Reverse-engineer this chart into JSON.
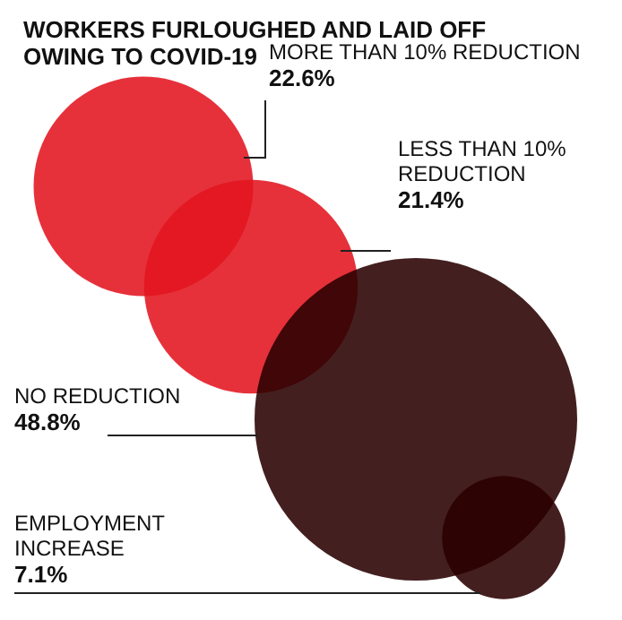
{
  "chart_data": {
    "type": "other",
    "title": "WORKERS FURLOUGHED AND LAID OFF OWING TO COVID-19",
    "categories": [
      "MORE THAN 10% REDUCTION",
      "LESS THAN 10% REDUCTION",
      "NO REDUCTION",
      "EMPLOYMENT INCREASE"
    ],
    "values": [
      22.6,
      21.4,
      48.8,
      7.1
    ],
    "value_labels": [
      "22.6%",
      "21.4%",
      "48.8%",
      "7.1%"
    ],
    "colors": [
      "#e3151f",
      "#e3151f",
      "#2a0000",
      "#2a0000"
    ]
  }
}
